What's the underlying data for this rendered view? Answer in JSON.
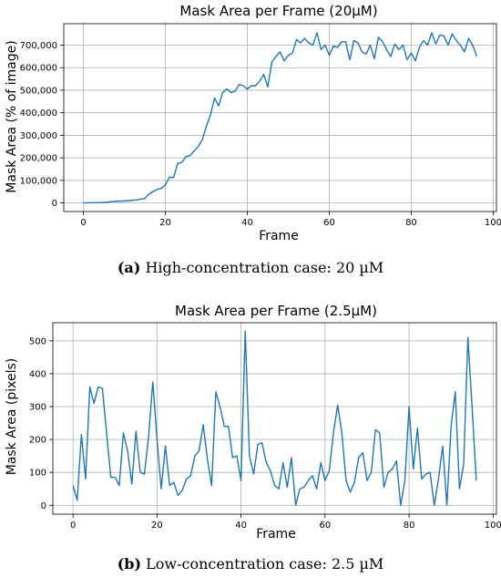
{
  "chart_data": [
    {
      "type": "line",
      "title": "Mask Area per Frame (20µM)",
      "xlabel": "Frame",
      "ylabel": "Mask Area (% of image)",
      "xlim": [
        -4.8,
        100.8
      ],
      "ylim": [
        -38000,
        795000
      ],
      "xticks": [
        0,
        20,
        40,
        60,
        80,
        100
      ],
      "xtick_labels": [
        "0",
        "20",
        "40",
        "60",
        "80",
        "100"
      ],
      "yticks": [
        0,
        100000,
        200000,
        300000,
        400000,
        500000,
        600000,
        700000
      ],
      "ytick_labels": [
        "0",
        "100,000",
        "200,000",
        "300,000",
        "400,000",
        "500,000",
        "600,000",
        "700,000"
      ],
      "grid": true,
      "color": "#1f77b4",
      "series": [
        {
          "x": [
            0,
            1,
            2,
            3,
            4,
            5,
            6,
            7,
            8,
            9,
            10,
            11,
            12,
            13,
            14,
            15,
            16,
            17,
            18,
            19,
            20,
            21,
            22,
            23,
            24,
            25,
            26,
            27,
            28,
            29,
            30,
            31,
            32,
            33,
            34,
            35,
            36,
            37,
            38,
            39,
            40,
            41,
            42,
            43,
            44,
            45,
            46,
            47,
            48,
            49,
            50,
            51,
            52,
            53,
            54,
            55,
            56,
            57,
            58,
            59,
            60,
            61,
            62,
            63,
            64,
            65,
            66,
            67,
            68,
            69,
            70,
            71,
            72,
            73,
            74,
            75,
            76,
            77,
            78,
            79,
            80,
            81,
            82,
            83,
            84,
            85,
            86,
            87,
            88,
            89,
            90,
            91,
            92,
            93,
            94,
            95,
            96
          ],
          "y": [
            0,
            500,
            1000,
            1200,
            1500,
            2500,
            4000,
            6000,
            7000,
            8000,
            9000,
            10000,
            12000,
            14000,
            17000,
            20000,
            40000,
            50000,
            60000,
            65000,
            80000,
            115000,
            112000,
            175000,
            180000,
            205000,
            210000,
            230000,
            250000,
            280000,
            340000,
            390000,
            465000,
            430000,
            490000,
            505000,
            490000,
            495000,
            525000,
            520000,
            505000,
            520000,
            520000,
            540000,
            570000,
            515000,
            625000,
            650000,
            670000,
            630000,
            655000,
            665000,
            725000,
            710000,
            730000,
            710000,
            700000,
            755000,
            680000,
            700000,
            655000,
            695000,
            690000,
            715000,
            715000,
            635000,
            720000,
            710000,
            670000,
            660000,
            700000,
            640000,
            735000,
            715000,
            680000,
            650000,
            705000,
            680000,
            700000,
            635000,
            665000,
            630000,
            690000,
            720000,
            700000,
            755000,
            705000,
            745000,
            740000,
            700000,
            750000,
            720000,
            700000,
            670000,
            730000,
            700000,
            650000
          ]
        }
      ]
    },
    {
      "type": "line",
      "title": "Mask Area per Frame (2.5µM)",
      "xlabel": "Frame",
      "ylabel": "Mask Area (pixels)",
      "xlim": [
        -4.8,
        100.8
      ],
      "ylim": [
        -27,
        555
      ],
      "xticks": [
        0,
        20,
        40,
        60,
        80,
        100
      ],
      "xtick_labels": [
        "0",
        "20",
        "40",
        "60",
        "80",
        "100"
      ],
      "yticks": [
        0,
        100,
        200,
        300,
        400,
        500
      ],
      "ytick_labels": [
        "0",
        "100",
        "200",
        "300",
        "400",
        "500"
      ],
      "grid": true,
      "color": "#1f77b4",
      "series": [
        {
          "x": [
            0,
            1,
            2,
            3,
            4,
            5,
            6,
            7,
            8,
            9,
            10,
            11,
            12,
            13,
            14,
            15,
            16,
            17,
            18,
            19,
            20,
            21,
            22,
            23,
            24,
            25,
            26,
            27,
            28,
            29,
            30,
            31,
            32,
            33,
            34,
            35,
            36,
            37,
            38,
            39,
            40,
            41,
            42,
            43,
            44,
            45,
            46,
            47,
            48,
            49,
            50,
            51,
            52,
            53,
            54,
            55,
            56,
            57,
            58,
            59,
            60,
            61,
            62,
            63,
            64,
            65,
            66,
            67,
            68,
            69,
            70,
            71,
            72,
            73,
            74,
            75,
            76,
            77,
            78,
            79,
            80,
            81,
            82,
            83,
            84,
            85,
            86,
            87,
            88,
            89,
            90,
            91,
            92,
            93,
            94,
            95,
            96
          ],
          "y": [
            60,
            15,
            215,
            80,
            360,
            310,
            360,
            355,
            220,
            85,
            85,
            60,
            220,
            165,
            65,
            225,
            100,
            95,
            210,
            375,
            200,
            50,
            180,
            60,
            70,
            30,
            45,
            80,
            90,
            150,
            165,
            245,
            140,
            60,
            345,
            300,
            240,
            240,
            145,
            150,
            75,
            530,
            150,
            95,
            185,
            190,
            130,
            105,
            60,
            50,
            130,
            55,
            145,
            0,
            50,
            55,
            75,
            90,
            50,
            130,
            75,
            105,
            220,
            305,
            220,
            75,
            40,
            70,
            145,
            160,
            75,
            100,
            230,
            220,
            55,
            100,
            110,
            135,
            0,
            75,
            300,
            110,
            235,
            80,
            95,
            100,
            0,
            80,
            180,
            0,
            240,
            345,
            50,
            125,
            510,
            300,
            75
          ]
        }
      ]
    }
  ],
  "captions": {
    "a_label": "(a)",
    "a_text": "High-concentration case: 20 µM",
    "b_label": "(b)",
    "b_text": "Low-concentration case: 2.5 µM"
  }
}
